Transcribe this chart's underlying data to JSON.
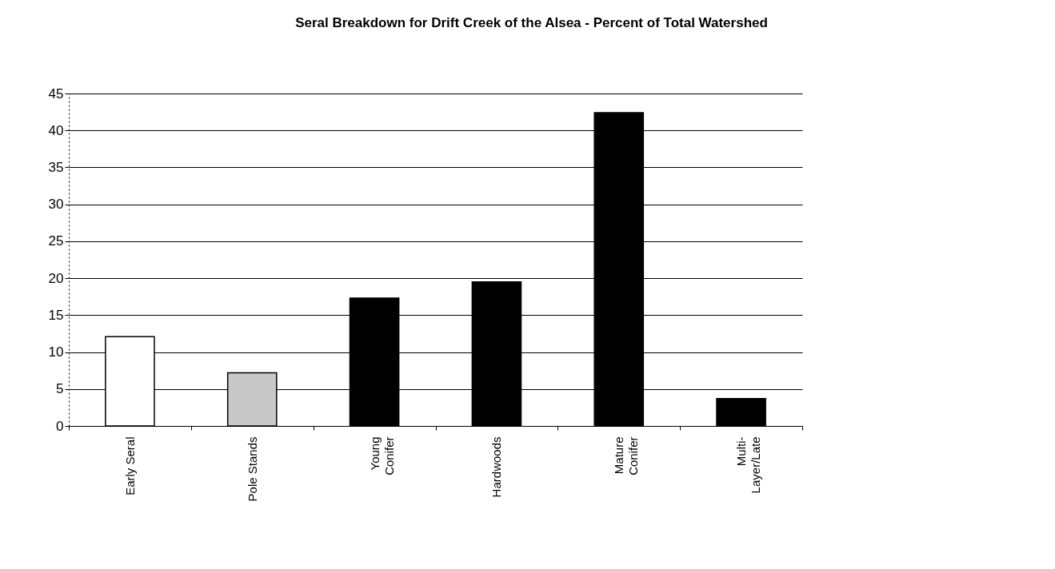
{
  "chart_data": {
    "type": "bar",
    "title": "Seral Breakdown for Drift Creek of the Alsea - Percent of Total Watershed",
    "categories": [
      "Early Seral",
      "Pole Stands",
      "Young Conifer",
      "Hardwoods",
      "Mature Conifer",
      "Multi-Layer/Late"
    ],
    "values": [
      12.1,
      7.2,
      17.3,
      19.5,
      42.4,
      3.7
    ],
    "colors": [
      "#ffffff",
      "#c8c8c8",
      "#000000",
      "#000000",
      "#000000",
      "#000000"
    ],
    "ylim": [
      0,
      45
    ],
    "yticks": [
      0,
      5,
      10,
      15,
      20,
      25,
      30,
      35,
      40,
      45
    ],
    "grid": "y"
  }
}
